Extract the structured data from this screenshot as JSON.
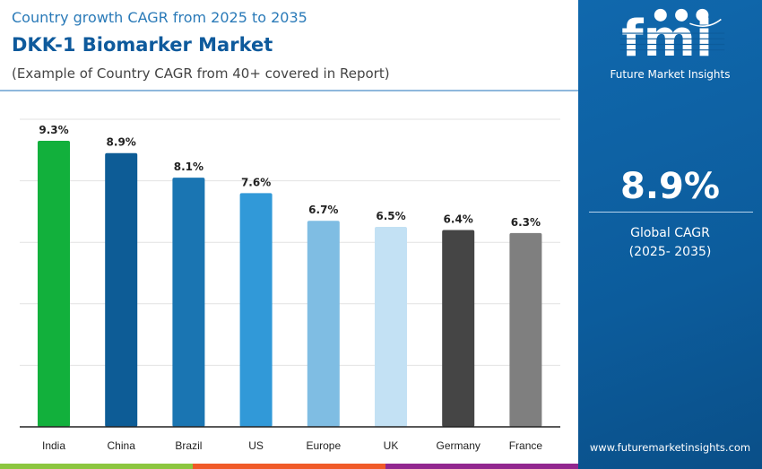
{
  "header": {
    "subtitle": "Country growth CAGR from 2025 to 2035",
    "title": "DKK-1 Biomarker Market",
    "note": "(Example of Country CAGR from 40+ covered in Report)"
  },
  "sidebar": {
    "brand": "Future Market Insights",
    "logo_text": "fmi",
    "global_value": "8.9%",
    "global_label": "Global CAGR",
    "global_period": "(2025- 2035)",
    "url": "www.futuremarketinsights.com"
  },
  "chart_data": {
    "type": "bar",
    "categories": [
      "India",
      "China",
      "Brazil",
      "US",
      "Europe",
      "UK",
      "Germany",
      "France"
    ],
    "values": [
      9.3,
      8.9,
      8.1,
      7.6,
      6.7,
      6.5,
      6.4,
      6.3
    ],
    "labels": [
      "9.3%",
      "8.9%",
      "8.1%",
      "7.6%",
      "6.7%",
      "6.5%",
      "6.4%",
      "6.3%"
    ],
    "colors": [
      "#12b03c",
      "#0d5c96",
      "#1a75b2",
      "#3199d8",
      "#7fbde3",
      "#c3e1f4",
      "#454545",
      "#7f7f7f"
    ],
    "ylim": [
      0,
      10
    ],
    "grid": true,
    "yticks_shown": false
  },
  "colors": {
    "bottom_bar": [
      "#8cc63f",
      "#f05a28",
      "#92278f"
    ],
    "sidebar": "#0c5c9c",
    "title": "#0e5a9c"
  }
}
